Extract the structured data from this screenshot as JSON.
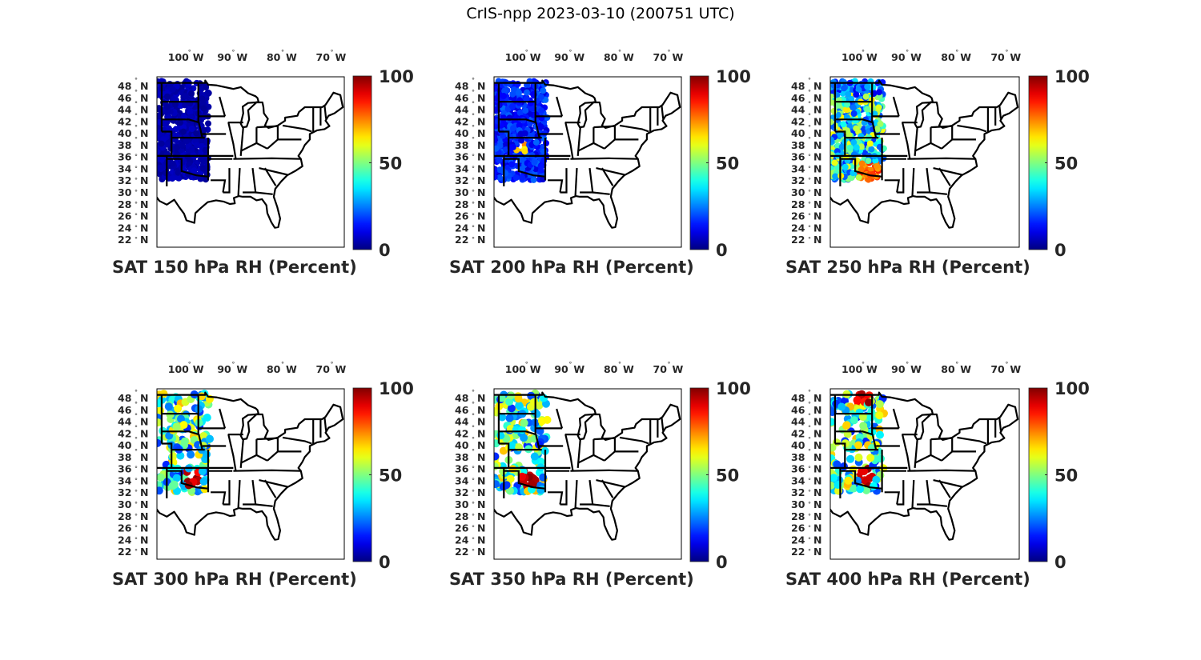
{
  "figure_title": "CrIS-npp 2023-03-10 (200751 UTC)",
  "colors": {
    "colormap": "jet",
    "frame": "#000000",
    "text": "#262626"
  },
  "chart_data": [
    {
      "type": "scatter",
      "title": "SAT 150 hPa RH (Percent)",
      "level_hpa": 150,
      "character": "uniformly very low RH (~0-5%) across swath",
      "x_tick_labels": [
        "100",
        "90",
        "80",
        "70"
      ],
      "x_tick_suffix": "W",
      "y_tick_labels": [
        "48",
        "46",
        "44",
        "42",
        "40",
        "38",
        "36",
        "34",
        "32",
        "30",
        "28",
        "26",
        "24",
        "22"
      ],
      "y_tick_suffix": "N",
      "xlim": [
        -105,
        -67
      ],
      "ylim": [
        22,
        50
      ],
      "colorbar": {
        "ticks": [
          "0",
          "50",
          "100"
        ],
        "range": [
          0,
          100
        ]
      }
    },
    {
      "type": "scatter",
      "title": "SAT 200 hPa RH (Percent)",
      "level_hpa": 200,
      "character": "mostly low RH (~5-20%) with a local moist spot (~70%) near 38N 99W",
      "x_tick_labels": [
        "100",
        "90",
        "80",
        "70"
      ],
      "x_tick_suffix": "W",
      "y_tick_labels": [
        "48",
        "46",
        "44",
        "42",
        "40",
        "38",
        "36",
        "34",
        "32",
        "30",
        "28",
        "26",
        "24",
        "22"
      ],
      "y_tick_suffix": "N",
      "xlim": [
        -105,
        -67
      ],
      "ylim": [
        22,
        50
      ],
      "colorbar": {
        "ticks": [
          "0",
          "50",
          "100"
        ],
        "range": [
          0,
          100
        ]
      }
    },
    {
      "type": "scatter",
      "title": "SAT 250 hPa RH (Percent)",
      "level_hpa": 250,
      "character": "mixed RH (~10-80%), higher values in the south",
      "x_tick_labels": [
        "100",
        "90",
        "80",
        "70"
      ],
      "x_tick_suffix": "W",
      "y_tick_labels": [
        "48",
        "46",
        "44",
        "42",
        "40",
        "38",
        "36",
        "34",
        "32",
        "30",
        "28",
        "26",
        "24",
        "22"
      ],
      "y_tick_suffix": "N",
      "xlim": [
        -105,
        -67
      ],
      "ylim": [
        22,
        50
      ],
      "colorbar": {
        "ticks": [
          "0",
          "50",
          "100"
        ],
        "range": [
          0,
          100
        ]
      }
    },
    {
      "type": "scatter",
      "title": "SAT 300 hPa RH (Percent)",
      "level_hpa": 300,
      "character": "mixed RH, very moist (~90-100%) near 35N 97W",
      "x_tick_labels": [
        "100",
        "90",
        "80",
        "70"
      ],
      "x_tick_suffix": "W",
      "y_tick_labels": [
        "48",
        "46",
        "44",
        "42",
        "40",
        "38",
        "36",
        "34",
        "32",
        "30",
        "28",
        "26",
        "24",
        "22"
      ],
      "y_tick_suffix": "N",
      "xlim": [
        -105,
        -67
      ],
      "ylim": [
        22,
        50
      ],
      "colorbar": {
        "ticks": [
          "0",
          "50",
          "100"
        ],
        "range": [
          0,
          100
        ]
      }
    },
    {
      "type": "scatter",
      "title": "SAT 350 hPa RH (Percent)",
      "level_hpa": 350,
      "character": "sparse mixed RH, moist spots in north and near 35N 97W",
      "x_tick_labels": [
        "100",
        "90",
        "80",
        "70"
      ],
      "x_tick_suffix": "W",
      "y_tick_labels": [
        "48",
        "46",
        "44",
        "42",
        "40",
        "38",
        "36",
        "34",
        "32",
        "30",
        "28",
        "26",
        "24",
        "22"
      ],
      "y_tick_suffix": "N",
      "xlim": [
        -105,
        -67
      ],
      "ylim": [
        22,
        50
      ],
      "colorbar": {
        "ticks": [
          "0",
          "50",
          "100"
        ],
        "range": [
          0,
          100
        ]
      }
    },
    {
      "type": "scatter",
      "title": "SAT 400 hPa RH (Percent)",
      "level_hpa": 400,
      "character": "sparse mixed RH (~30-90%), moist near 48N 98W",
      "x_tick_labels": [
        "100",
        "90",
        "80",
        "70"
      ],
      "x_tick_suffix": "W",
      "y_tick_labels": [
        "48",
        "46",
        "44",
        "42",
        "40",
        "38",
        "36",
        "34",
        "32",
        "30",
        "28",
        "26",
        "24",
        "22"
      ],
      "y_tick_suffix": "N",
      "xlim": [
        -105,
        -67
      ],
      "ylim": [
        22,
        50
      ],
      "colorbar": {
        "ticks": [
          "0",
          "50",
          "100"
        ],
        "range": [
          0,
          100
        ]
      }
    }
  ]
}
